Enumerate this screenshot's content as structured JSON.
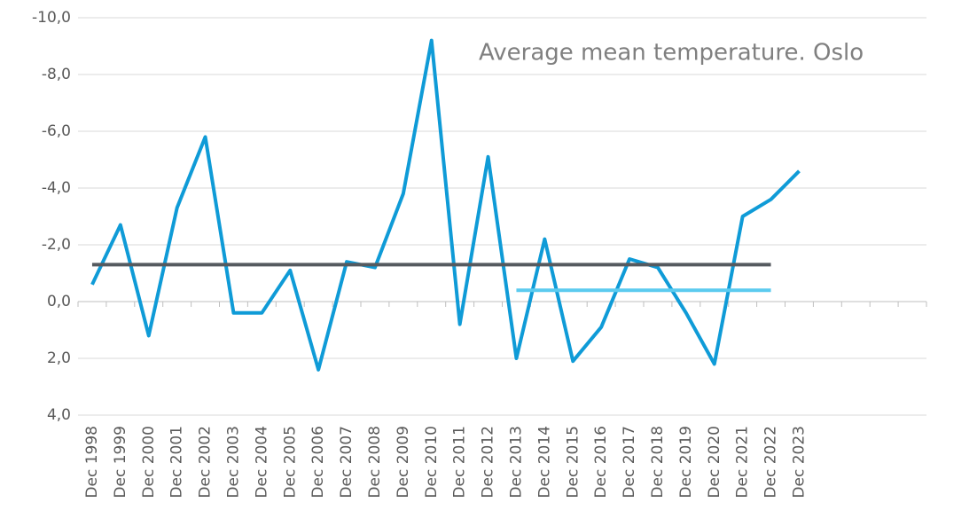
{
  "chart_data": {
    "type": "line",
    "title": "Average mean temperature. Oslo",
    "categories": [
      "Dec 1998",
      "Dec 1999",
      "Dec 2000",
      "Dec 2001",
      "Dec 2002",
      "Dec 2003",
      "Dec 2004",
      "Dec 2005",
      "Dec 2006",
      "Dec 2007",
      "Dec 2008",
      "Dec 2009",
      "Dec 2010",
      "Dec 2011",
      "Dec 2012",
      "Dec 2013",
      "Dec 2014",
      "Dec 2015",
      "Dec 2016",
      "Dec 2017",
      "Dec 2018",
      "Dec 2019",
      "Dec 2020",
      "Dec 2021",
      "Dec 2022",
      "Dec 2023",
      null,
      null,
      null,
      null
    ],
    "series": [
      {
        "color": "#0f9bd7",
        "values": [
          -0.6,
          -2.7,
          1.2,
          -3.3,
          -5.8,
          0.4,
          0.4,
          -1.1,
          2.4,
          -1.4,
          -1.2,
          -3.8,
          -9.2,
          0.8,
          -5.1,
          2.0,
          -2.2,
          2.1,
          0.9,
          -1.5,
          -1.2,
          0.4,
          2.2,
          -3.0,
          -3.6,
          -4.6,
          null,
          null,
          null,
          null
        ]
      },
      {
        "color": "#555a5f",
        "values": [
          -1.3,
          -1.3,
          -1.3,
          -1.3,
          -1.3,
          -1.3,
          -1.3,
          -1.3,
          -1.3,
          -1.3,
          -1.3,
          -1.3,
          -1.3,
          -1.3,
          -1.3,
          -1.3,
          -1.3,
          -1.3,
          -1.3,
          -1.3,
          -1.3,
          -1.3,
          -1.3,
          -1.3,
          -1.3,
          null,
          null,
          null,
          null,
          null
        ]
      },
      {
        "color": "#5bcbef",
        "values": [
          null,
          null,
          null,
          null,
          null,
          null,
          null,
          null,
          null,
          null,
          null,
          null,
          null,
          null,
          null,
          -0.4,
          -0.4,
          -0.4,
          -0.4,
          -0.4,
          -0.4,
          -0.4,
          -0.4,
          -0.4,
          -0.4,
          null,
          null,
          null,
          null,
          null
        ]
      }
    ],
    "ylim": [
      -10,
      4
    ],
    "y_reversed": true,
    "yticks": [
      {
        "value": -10,
        "label": "-10,0"
      },
      {
        "value": -8,
        "label": "-8,0"
      },
      {
        "value": -6,
        "label": "-6,0"
      },
      {
        "value": -4,
        "label": "-4,0"
      },
      {
        "value": -2,
        "label": "-2,0"
      },
      {
        "value": 0,
        "label": "0,0"
      },
      {
        "value": 2,
        "label": "2,0"
      },
      {
        "value": 4,
        "label": "4,0"
      }
    ],
    "grid": true
  }
}
